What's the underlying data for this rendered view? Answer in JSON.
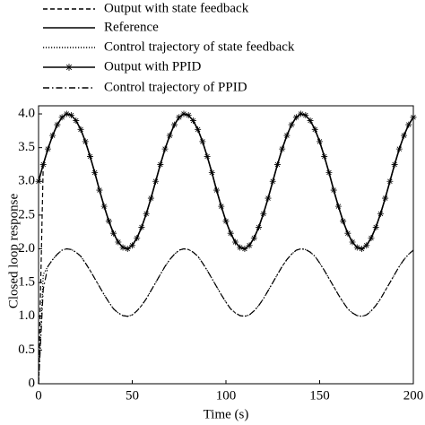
{
  "chart_data": {
    "type": "line",
    "ylabel": "Closed loop response",
    "xlabel": "Time (s)",
    "xlim": [
      0,
      200
    ],
    "ylim": [
      0,
      4.12
    ],
    "xticks": [
      0,
      50,
      100,
      150,
      200
    ],
    "yticks": [
      0,
      0.5,
      {
        "value": 1,
        "label": "1.0"
      },
      1.5,
      {
        "value": 2,
        "label": "2.0"
      },
      2.5,
      {
        "value": 3,
        "label": "3.0"
      },
      3.5,
      {
        "value": 4,
        "label": "4.0"
      }
    ],
    "x": [
      0,
      2.5,
      5,
      7.5,
      10,
      12.5,
      15,
      17.5,
      20,
      22.5,
      25,
      27.5,
      30,
      32.5,
      35,
      37.5,
      40,
      42.5,
      45,
      47.5,
      50,
      52.5,
      55,
      57.5,
      60,
      62.5,
      65,
      67.5,
      70,
      72.5,
      75,
      77.5,
      80,
      82.5,
      85,
      87.5,
      90,
      92.5,
      95,
      97.5,
      100,
      102.5,
      105,
      107.5,
      110,
      112.5,
      115,
      117.5,
      120,
      122.5,
      125,
      127.5,
      130,
      132.5,
      135,
      137.5,
      140,
      142.5,
      145,
      147.5,
      150,
      152.5,
      155,
      157.5,
      160,
      162.5,
      165,
      167.5,
      170,
      172.5,
      175,
      177.5,
      180,
      182.5,
      185,
      187.5,
      190,
      192.5,
      195,
      197.5,
      200
    ],
    "series": [
      {
        "name": "Output with state feedback",
        "color": "#000000",
        "style": "dashed",
        "values": [
          0,
          3.25,
          3.48,
          3.68,
          3.84,
          3.95,
          4.0,
          3.98,
          3.9,
          3.77,
          3.59,
          3.37,
          3.13,
          2.87,
          2.63,
          2.41,
          2.23,
          2.1,
          2.02,
          2.0,
          2.05,
          2.16,
          2.32,
          2.52,
          2.75,
          3,
          3.25,
          3.48,
          3.68,
          3.84,
          3.95,
          4.0,
          3.98,
          3.9,
          3.77,
          3.59,
          3.37,
          3.13,
          2.87,
          2.63,
          2.41,
          2.23,
          2.1,
          2.02,
          2.0,
          2.05,
          2.16,
          2.32,
          2.52,
          2.75,
          3,
          3.25,
          3.48,
          3.68,
          3.84,
          3.95,
          4.0,
          3.98,
          3.9,
          3.77,
          3.59,
          3.37,
          3.13,
          2.87,
          2.63,
          2.41,
          2.23,
          2.1,
          2.02,
          2.0,
          2.05,
          2.16,
          2.32,
          2.52,
          2.75,
          3,
          3.25,
          3.48,
          3.68,
          3.84,
          3.95
        ]
      },
      {
        "name": "Reference",
        "color": "#000000",
        "style": "solid",
        "values": [
          3,
          3.25,
          3.48,
          3.68,
          3.84,
          3.95,
          4.0,
          3.98,
          3.9,
          3.77,
          3.59,
          3.37,
          3.13,
          2.87,
          2.63,
          2.41,
          2.23,
          2.1,
          2.02,
          2.0,
          2.05,
          2.16,
          2.32,
          2.52,
          2.75,
          3,
          3.25,
          3.48,
          3.68,
          3.84,
          3.95,
          4.0,
          3.98,
          3.9,
          3.77,
          3.59,
          3.37,
          3.13,
          2.87,
          2.63,
          2.41,
          2.23,
          2.1,
          2.02,
          2.0,
          2.05,
          2.16,
          2.32,
          2.52,
          2.75,
          3,
          3.25,
          3.48,
          3.68,
          3.84,
          3.95,
          4.0,
          3.98,
          3.9,
          3.77,
          3.59,
          3.37,
          3.13,
          2.87,
          2.63,
          2.41,
          2.23,
          2.1,
          2.02,
          2.0,
          2.05,
          2.16,
          2.32,
          2.52,
          2.75,
          3,
          3.25,
          3.48,
          3.68,
          3.84,
          3.95
        ]
      },
      {
        "name": "Control trajectory of state feedback",
        "color": "#000000",
        "style": "dotted",
        "values": [
          0,
          1.62,
          1.74,
          1.84,
          1.92,
          1.98,
          2.0,
          1.99,
          1.95,
          1.89,
          1.79,
          1.68,
          1.56,
          1.44,
          1.32,
          1.21,
          1.11,
          1.05,
          1.01,
          1.0,
          1.02,
          1.08,
          1.16,
          1.26,
          1.38,
          1.5,
          1.62,
          1.74,
          1.84,
          1.92,
          1.98,
          2.0,
          1.99,
          1.95,
          1.89,
          1.79,
          1.68,
          1.56,
          1.44,
          1.32,
          1.21,
          1.11,
          1.05,
          1.01,
          1.0,
          1.02,
          1.08,
          1.16,
          1.26,
          1.38,
          1.5,
          1.62,
          1.74,
          1.84,
          1.92,
          1.98,
          2.0,
          1.99,
          1.95,
          1.89,
          1.79,
          1.68,
          1.56,
          1.44,
          1.32,
          1.21,
          1.11,
          1.05,
          1.01,
          1.0,
          1.02,
          1.08,
          1.16,
          1.26,
          1.38,
          1.5,
          1.62,
          1.74,
          1.84,
          1.92,
          1.98
        ]
      },
      {
        "name": "Output with PPID",
        "color": "#000000",
        "style": "star",
        "values": [
          3,
          3.25,
          3.48,
          3.68,
          3.84,
          3.95,
          4.0,
          3.98,
          3.9,
          3.77,
          3.59,
          3.37,
          3.13,
          2.87,
          2.63,
          2.41,
          2.23,
          2.1,
          2.02,
          2.0,
          2.05,
          2.16,
          2.32,
          2.52,
          2.75,
          3,
          3.25,
          3.48,
          3.68,
          3.84,
          3.95,
          4.0,
          3.98,
          3.9,
          3.77,
          3.59,
          3.37,
          3.13,
          2.87,
          2.63,
          2.41,
          2.23,
          2.1,
          2.02,
          2.0,
          2.05,
          2.16,
          2.32,
          2.52,
          2.75,
          3,
          3.25,
          3.48,
          3.68,
          3.84,
          3.95,
          4.0,
          3.98,
          3.9,
          3.77,
          3.59,
          3.37,
          3.13,
          2.87,
          2.63,
          2.41,
          2.23,
          2.1,
          2.02,
          2.0,
          2.05,
          2.16,
          2.32,
          2.52,
          2.75,
          3,
          3.25,
          3.48,
          3.68,
          3.84,
          3.95
        ]
      },
      {
        "name": "Control trajectory of PPID",
        "color": "#000000",
        "style": "dashdot",
        "values": [
          0,
          1.4,
          1.74,
          1.84,
          1.92,
          1.98,
          2.0,
          1.99,
          1.95,
          1.89,
          1.79,
          1.68,
          1.56,
          1.44,
          1.32,
          1.21,
          1.11,
          1.05,
          1.01,
          1.0,
          1.02,
          1.08,
          1.16,
          1.26,
          1.38,
          1.5,
          1.62,
          1.74,
          1.84,
          1.92,
          1.98,
          2.0,
          1.99,
          1.95,
          1.89,
          1.79,
          1.68,
          1.56,
          1.44,
          1.32,
          1.21,
          1.11,
          1.05,
          1.01,
          1.0,
          1.02,
          1.08,
          1.16,
          1.26,
          1.38,
          1.5,
          1.62,
          1.74,
          1.84,
          1.92,
          1.98,
          2.0,
          1.99,
          1.95,
          1.89,
          1.79,
          1.68,
          1.56,
          1.44,
          1.32,
          1.21,
          1.11,
          1.05,
          1.01,
          1.0,
          1.02,
          1.08,
          1.16,
          1.26,
          1.38,
          1.5,
          1.62,
          1.74,
          1.84,
          1.92,
          1.98
        ]
      }
    ]
  }
}
